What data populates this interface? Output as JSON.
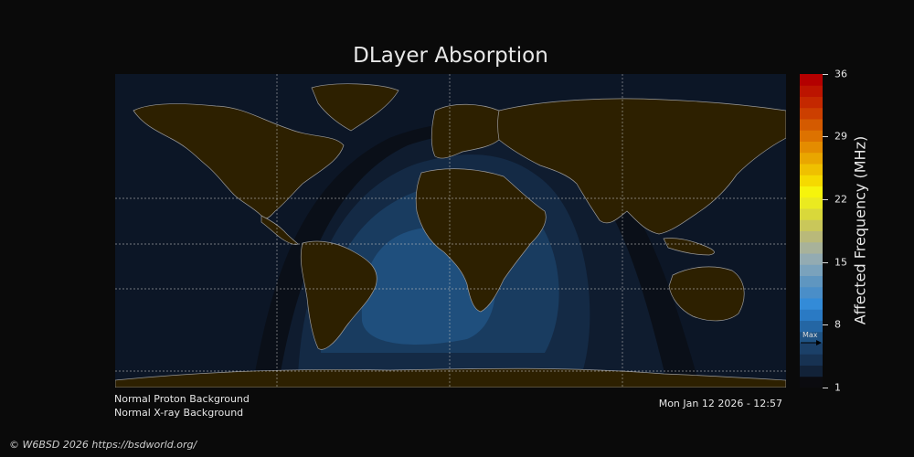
{
  "title": "DLayer Absorption",
  "colorbar": {
    "label": "Affected Frequency (MHz)",
    "ticks": [
      "36",
      "29",
      "22",
      "15",
      "8",
      "1"
    ],
    "min": 1,
    "max": 36,
    "max_marker_label": "Max",
    "max_marker_value": 6,
    "colors_low_to_high": [
      "#0b0b0f",
      "#122238",
      "#173252",
      "#1b4068",
      "#1f5384",
      "#2466a4",
      "#2a7ac4",
      "#338bd8",
      "#4a8ec8",
      "#5f96c0",
      "#7aa2bc",
      "#93abb2",
      "#a8b29a",
      "#b9b97a",
      "#c9c75a",
      "#d9d83a",
      "#eaea20",
      "#f6f40c",
      "#f5da00",
      "#efc000",
      "#e9a600",
      "#e48c00",
      "#dd7200",
      "#d45a00",
      "#cc3f00",
      "#c42800",
      "#bc1400",
      "#b40000"
    ]
  },
  "map": {
    "ocean_color": "#0c1626",
    "land_color": "#2d2000",
    "coastline_color": "#9a9a9a",
    "absorption_center_region": "Central Africa / South Atlantic",
    "absorption_levels_mhz": [
      1,
      2,
      4,
      5
    ]
  },
  "status": {
    "proton": "Normal Proton Background",
    "xray": "Normal X-ray Background"
  },
  "timestamp": "Mon Jan 12 2026 - 12:57",
  "credit": "© W6BSD 2026 https://bsdworld.org/"
}
